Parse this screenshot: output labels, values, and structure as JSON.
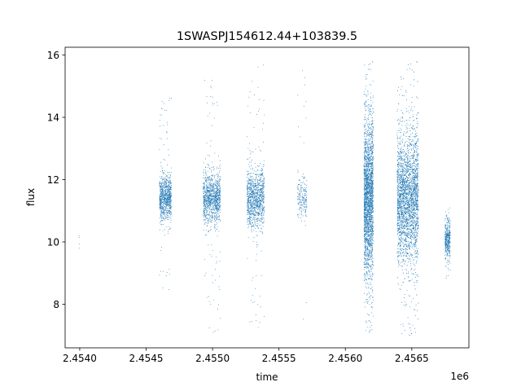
{
  "chart_data": {
    "type": "scatter",
    "title": "1SWASPJ154612.44+103839.5",
    "xlabel": "time",
    "ylabel": "flux",
    "x_offset_label": "1e6",
    "xlim": [
      2453840,
      2456880
    ],
    "ylim": [
      6.6,
      16.25
    ],
    "x_ticks": [
      2453950,
      2454450,
      2454950,
      2455450,
      2455950,
      2456450
    ],
    "x_tick_labels": [
      "2.4540",
      "2.4545",
      "2.4550",
      "2.4555",
      "2.4560",
      "2.4565"
    ],
    "y_ticks": [
      8,
      10,
      12,
      14,
      16
    ],
    "y_tick_labels": [
      "8",
      "10",
      "12",
      "14",
      "16"
    ],
    "marker_color": "#1f77b4",
    "grid": false,
    "legend": "none",
    "clusters": [
      {
        "t_start": 2453940,
        "t_end": 2453948,
        "center": 9.9,
        "sd": 0.25,
        "min": 9.6,
        "max": 10.2,
        "n": 4
      },
      {
        "t_start": 2454550,
        "t_end": 2454640,
        "center": 11.4,
        "sd": 0.35,
        "min": 8.4,
        "max": 14.7,
        "n": 900
      },
      {
        "t_start": 2454880,
        "t_end": 2455010,
        "center": 11.4,
        "sd": 0.4,
        "min": 7.0,
        "max": 15.2,
        "n": 1100
      },
      {
        "t_start": 2455210,
        "t_end": 2455340,
        "center": 11.4,
        "sd": 0.45,
        "min": 7.0,
        "max": 15.7,
        "n": 1100
      },
      {
        "t_start": 2455590,
        "t_end": 2455660,
        "center": 11.4,
        "sd": 0.3,
        "min": 7.2,
        "max": 15.6,
        "n": 200
      },
      {
        "t_start": 2456090,
        "t_end": 2456160,
        "center": 11.4,
        "sd": 1.2,
        "min": 7.0,
        "max": 15.8,
        "n": 2500
      },
      {
        "t_start": 2456340,
        "t_end": 2456500,
        "center": 11.4,
        "sd": 1.0,
        "min": 6.9,
        "max": 15.8,
        "n": 3000
      },
      {
        "t_start": 2456700,
        "t_end": 2456740,
        "center": 10.1,
        "sd": 0.3,
        "min": 8.8,
        "max": 11.1,
        "n": 400
      }
    ]
  }
}
